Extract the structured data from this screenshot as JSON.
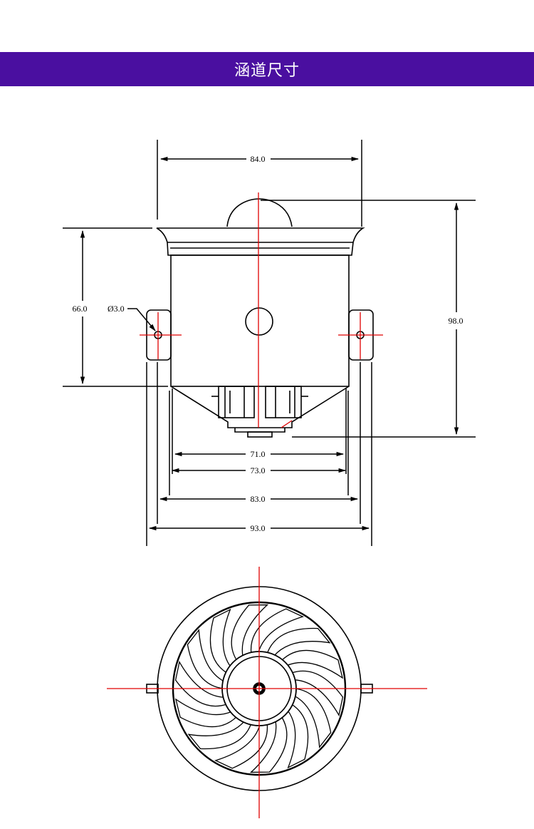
{
  "header": {
    "title": "涵道尺寸"
  },
  "dimensions": {
    "top_width": "84.0",
    "height_total": "98.0",
    "body_height": "66.0",
    "hole_diameter": "Ø3.0",
    "width_71": "71.0",
    "width_73": "73.0",
    "width_83": "83.0",
    "width_93": "93.0"
  },
  "colors": {
    "banner": "#4a0fa0",
    "centerline": "#e00000",
    "line": "#000000"
  }
}
